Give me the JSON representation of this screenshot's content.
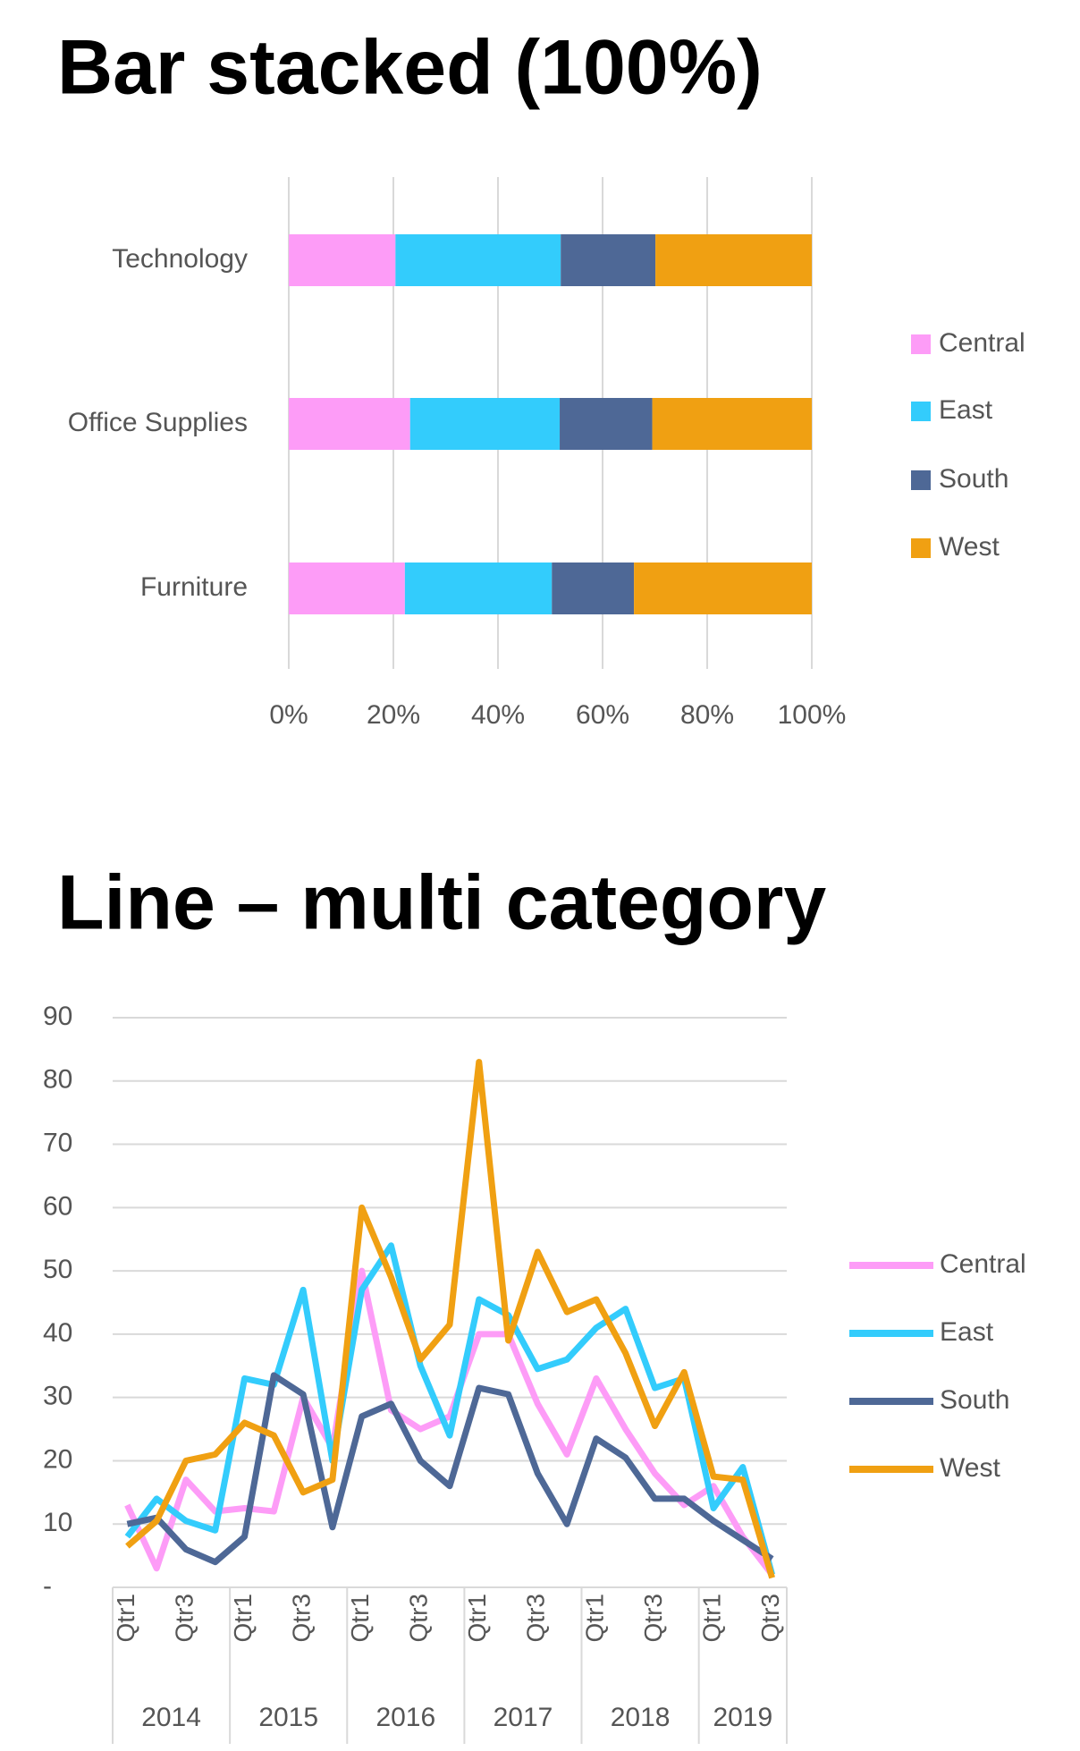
{
  "chart_data": [
    {
      "type": "bar",
      "title": "Bar stacked (100%)",
      "orientation": "horizontal",
      "stacked": true,
      "grid": true,
      "legend": "right",
      "categories": [
        "Technology",
        "Office Supplies",
        "Furniture"
      ],
      "series": [
        {
          "name": "Central",
          "color": "#fd9cf7",
          "values": [
            20.4,
            23.2,
            22.2
          ]
        },
        {
          "name": "East",
          "color": "#33ccfc",
          "values": [
            31.6,
            28.6,
            28.1
          ]
        },
        {
          "name": "South",
          "color": "#4e6896",
          "values": [
            18.1,
            17.7,
            15.7
          ]
        },
        {
          "name": "West",
          "color": "#f0a012",
          "values": [
            29.9,
            30.5,
            34.0
          ]
        }
      ],
      "xlim": [
        0,
        100
      ],
      "xticks": [
        {
          "value": 0,
          "label": "0%"
        },
        {
          "value": 20,
          "label": "20%"
        },
        {
          "value": 40,
          "label": "40%"
        },
        {
          "value": 60,
          "label": "60%"
        },
        {
          "value": 80,
          "label": "80%"
        },
        {
          "value": 100,
          "label": "100%"
        }
      ]
    },
    {
      "type": "line",
      "title": "Line – multi category",
      "grid": true,
      "legend": "right",
      "categories": [
        "Qtr1",
        null,
        "Qtr3",
        null,
        "Qtr1",
        null,
        "Qtr3",
        null,
        "Qtr1",
        null,
        "Qtr3",
        null,
        "Qtr1",
        null,
        "Qtr3",
        null,
        "Qtr1",
        null,
        "Qtr3",
        null,
        "Qtr1",
        null,
        "Qtr3"
      ],
      "groups": [
        {
          "name": "2014",
          "size": 4
        },
        {
          "name": "2015",
          "size": 4
        },
        {
          "name": "2016",
          "size": 4
        },
        {
          "name": "2017",
          "size": 4
        },
        {
          "name": "2018",
          "size": 4
        },
        {
          "name": "2019",
          "size": 3
        }
      ],
      "series": [
        {
          "name": "Central",
          "color": "#fd9cf7",
          "values": [
            13,
            3,
            17,
            12,
            12.5,
            12,
            30,
            22,
            50,
            28,
            25,
            27,
            40,
            40,
            29,
            21,
            33,
            25,
            18,
            13,
            16,
            8,
            2
          ]
        },
        {
          "name": "East",
          "color": "#33ccfc",
          "values": [
            8,
            14,
            10.5,
            9,
            33,
            32,
            47,
            20,
            47,
            54,
            35,
            24,
            45.5,
            43,
            34.5,
            36,
            41,
            44,
            31.5,
            33,
            12.5,
            19,
            2
          ]
        },
        {
          "name": "South",
          "color": "#4e6896",
          "values": [
            10,
            11,
            6,
            4,
            8,
            33.5,
            30.5,
            9.5,
            27,
            29,
            20,
            16,
            31.5,
            30.5,
            18,
            10,
            23.5,
            20.5,
            14,
            14,
            10.5,
            7.5,
            4.5
          ]
        },
        {
          "name": "West",
          "color": "#f0a012",
          "values": [
            6.5,
            10.5,
            20,
            21,
            26,
            24,
            15,
            17,
            60,
            49,
            36,
            41.5,
            83,
            39,
            53,
            43.5,
            45.5,
            37,
            25.5,
            34,
            17.5,
            17,
            1.5
          ]
        }
      ],
      "ylim": [
        0,
        90
      ],
      "yticks": [
        {
          "value": 0,
          "label": "-"
        },
        10,
        20,
        30,
        40,
        50,
        60,
        70,
        80,
        90
      ]
    }
  ]
}
